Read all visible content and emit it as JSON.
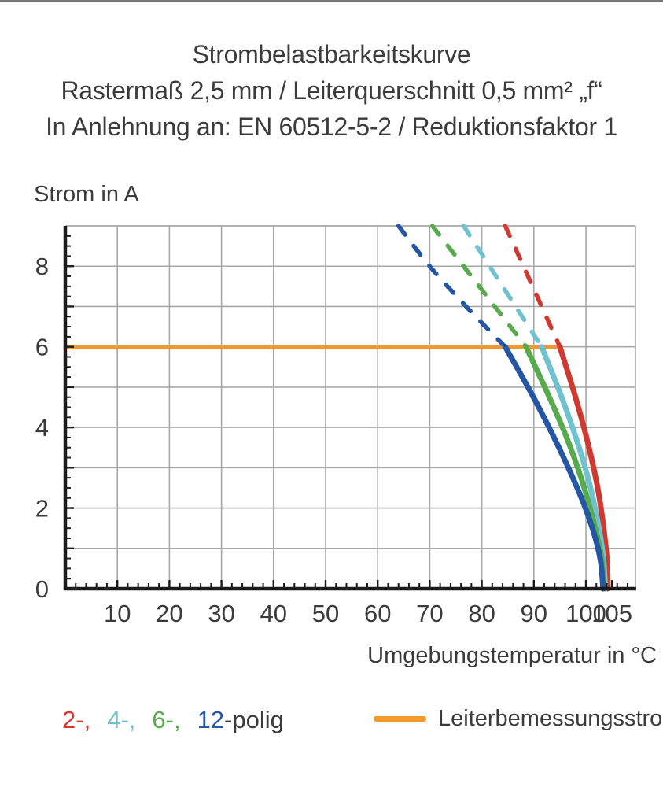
{
  "title": {
    "line1": "Strombelastbarkeitskurve",
    "line2": "Rastermaß 2,5 mm / Leiterquerschnitt 0,5 mm² „f“",
    "line3": "In Anlehnung an: EN 60512-5-2 / Reduktionsfaktor 1"
  },
  "axis": {
    "y_title": "Strom in A",
    "x_title": "Umgebungstemperatur in °C"
  },
  "legend": {
    "pole_items": [
      {
        "name": "2-polig",
        "label": "2-,",
        "color": "#d0392f"
      },
      {
        "name": "4-polig",
        "label": "4-,",
        "color": "#6fc2cf"
      },
      {
        "name": "6-polig",
        "label": "6-,",
        "color": "#58ab4c"
      },
      {
        "name": "12-polig",
        "label": "12",
        "color": "#2456a4"
      }
    ],
    "suffix": "-polig",
    "suffix_color": "#3b3b3b",
    "reference_label": "Leiterbemessungsstrom",
    "reference_color": "#f09a2e"
  },
  "colors": {
    "text": "#3b3b3b",
    "grid": "#a8a8a8",
    "axis": "#1c1c1c",
    "background": "#ffffff"
  },
  "chart_data": {
    "type": "line",
    "title": "Strombelastbarkeitskurve",
    "xlabel": "Umgebungstemperatur in °C",
    "ylabel": "Strom in A",
    "xlim": [
      0,
      109.5
    ],
    "ylim": [
      0,
      9
    ],
    "grid": true,
    "x_gridline_values": [
      10,
      20,
      30,
      40,
      50,
      60,
      70,
      80,
      90,
      100
    ],
    "y_gridline_values": [
      1,
      2,
      3,
      4,
      5,
      6,
      7,
      8
    ],
    "x_major_ticks": [
      10,
      20,
      30,
      40,
      50,
      60,
      70,
      80,
      90,
      100,
      105
    ],
    "y_labeled_ticks": [
      0,
      2,
      4,
      6,
      8
    ],
    "x_minor_step": 2,
    "y_minor_step": 0.25,
    "legend_position": "bottom",
    "reference_line": {
      "label": "Leiterbemessungsstrom",
      "color": "#f09a2e",
      "current_a": 6,
      "x_start": 0,
      "x_end": 95
    },
    "series": [
      {
        "name": "2-polig",
        "color": "#d0392f",
        "dashed_points": [
          [
            84.5,
            9
          ],
          [
            88,
            8
          ],
          [
            91.5,
            7
          ],
          [
            95,
            6
          ]
        ],
        "solid_points": [
          [
            95,
            6
          ],
          [
            98,
            4.75
          ],
          [
            100.5,
            3.55
          ],
          [
            102.4,
            2.4
          ],
          [
            103.6,
            1.3
          ],
          [
            104.1,
            0.6
          ],
          [
            104.2,
            0
          ]
        ]
      },
      {
        "name": "4-polig",
        "color": "#6fc2cf",
        "dashed_points": [
          [
            76.5,
            9
          ],
          [
            81.5,
            8
          ],
          [
            86.5,
            7
          ],
          [
            91.5,
            6
          ]
        ],
        "solid_points": [
          [
            91.5,
            6
          ],
          [
            95.2,
            4.8
          ],
          [
            98.2,
            3.7
          ],
          [
            100.7,
            2.6
          ],
          [
            102.5,
            1.5
          ],
          [
            103.4,
            0.7
          ],
          [
            103.7,
            0
          ]
        ]
      },
      {
        "name": "6-polig",
        "color": "#58ab4c",
        "dashed_points": [
          [
            70.5,
            9
          ],
          [
            76.5,
            8
          ],
          [
            82.5,
            7
          ],
          [
            88.5,
            6
          ]
        ],
        "solid_points": [
          [
            88.5,
            6
          ],
          [
            92.8,
            4.8
          ],
          [
            96.3,
            3.75
          ],
          [
            99.2,
            2.7
          ],
          [
            101.4,
            1.7
          ],
          [
            102.9,
            0.85
          ],
          [
            103.5,
            0
          ]
        ]
      },
      {
        "name": "12-polig",
        "color": "#2456a4",
        "dashed_points": [
          [
            64,
            9
          ],
          [
            70,
            8
          ],
          [
            77,
            7
          ],
          [
            84.5,
            6
          ]
        ],
        "solid_points": [
          [
            84.5,
            6
          ],
          [
            89.5,
            4.85
          ],
          [
            93.5,
            3.85
          ],
          [
            96.8,
            2.95
          ],
          [
            99.6,
            2.1
          ],
          [
            101.6,
            1.35
          ],
          [
            102.8,
            0.7
          ],
          [
            103.3,
            0
          ]
        ]
      }
    ]
  }
}
